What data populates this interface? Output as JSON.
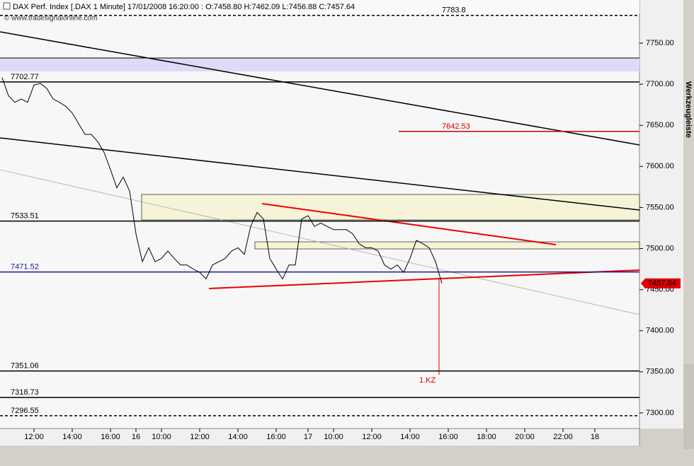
{
  "chart_data": {
    "type": "line",
    "title": "DAX Perf. Index [.DAX  1 Minute] 17/01/2008 16:20:00 : O:7458.80 H:7462.09 L:7456.88 C:7457.64",
    "subtitle": "© www.tradesignalonline.com",
    "sidebar_label": "Werkzeugleiste",
    "annotation": "1.KZ",
    "categories": [
      null,
      null,
      null,
      null,
      null,
      "12:00",
      null,
      null,
      null,
      null,
      null,
      "14:00",
      null,
      null,
      null,
      null,
      null,
      "16:00",
      null,
      null,
      null,
      "16",
      null,
      null,
      null,
      "10:00",
      null,
      null,
      null,
      null,
      null,
      "12:00",
      null,
      null,
      null,
      null,
      null,
      "14:00",
      null,
      null,
      null,
      null,
      null,
      "16:00",
      null,
      null,
      null,
      null,
      "17",
      null,
      null,
      null,
      "10:00",
      null,
      null,
      null,
      null,
      null,
      "12:00",
      null,
      null,
      null,
      null,
      null,
      "14:00",
      null,
      null,
      null,
      null,
      null,
      "16:00",
      null,
      null,
      null,
      null,
      null,
      "18:00",
      null,
      null,
      null,
      null,
      null,
      "20:00",
      null,
      null,
      null,
      null,
      null,
      "22:00",
      null,
      null,
      null,
      null,
      "18",
      null,
      null,
      null,
      null,
      null,
      null
    ],
    "series": [
      {
        "name": "DAX Perf. Index",
        "color": "#000000",
        "values": [
          7708,
          7686,
          7678,
          7682,
          7678,
          7699,
          7701,
          7695,
          7682,
          7678,
          7673,
          7665,
          7652,
          7639,
          7639,
          7630,
          7617,
          7596,
          7574,
          7587,
          7570,
          7518,
          7484,
          7501,
          7484,
          7488,
          7497,
          7488,
          7480,
          7480,
          7475,
          7471,
          7463,
          7480,
          7484,
          7488,
          7497,
          7501,
          7493,
          7527,
          7544,
          7536,
          7488,
          7475,
          7463,
          7480,
          7480,
          7536,
          7540,
          7527,
          7531,
          7527,
          7523,
          7523,
          7523,
          7518,
          7506,
          7501,
          7501,
          7497,
          7480,
          7475,
          7480,
          7471,
          7488,
          7510,
          7506,
          7501,
          7484,
          7457.64,
          null,
          null,
          null,
          null,
          null,
          null,
          null,
          null,
          null,
          null,
          null,
          null,
          null,
          null,
          null,
          null,
          null,
          null,
          null,
          null,
          null,
          null,
          null,
          null,
          null,
          null,
          null,
          null,
          null,
          null
        ]
      }
    ],
    "last_price": 7457.64,
    "levels": [
      {
        "value": 7783.8,
        "color": "#000000",
        "dashed": true,
        "label_side": "middle"
      },
      {
        "value": 7702.77,
        "color": "#000000",
        "dashed": false,
        "label_side": "left"
      },
      {
        "value": 7642.53,
        "color": "#cc0000",
        "dashed": false,
        "label_side": "middle"
      },
      {
        "value": 7533.51,
        "color": "#000000",
        "dashed": false,
        "label_side": "left"
      },
      {
        "value": 7471.52,
        "color": "#1a1aa0",
        "dashed": false,
        "label_side": "left"
      },
      {
        "value": 7351.06,
        "color": "#000000",
        "dashed": false,
        "label_side": "left"
      },
      {
        "value": 7318.73,
        "color": "#000000",
        "dashed": false,
        "label_side": "left"
      },
      {
        "value": 7296.55,
        "color": "#000000",
        "dashed": true,
        "label_side": "left"
      }
    ],
    "ylim": [
      7281,
      7802.5
    ],
    "yticks": [
      {
        "value": 7300,
        "label": "7300.00"
      },
      {
        "value": 7350,
        "label": "7350.00"
      },
      {
        "value": 7400,
        "label": "7400.00"
      },
      {
        "value": 7450,
        "label": "7450.00"
      },
      {
        "value": 7500,
        "label": "7500.00"
      },
      {
        "value": 7550,
        "label": "7550.00"
      },
      {
        "value": 7600,
        "label": "7600.00"
      },
      {
        "value": 7650,
        "label": "7650.00"
      },
      {
        "value": 7700,
        "label": "7700.00"
      },
      {
        "value": 7750,
        "label": "7750.00"
      }
    ]
  }
}
